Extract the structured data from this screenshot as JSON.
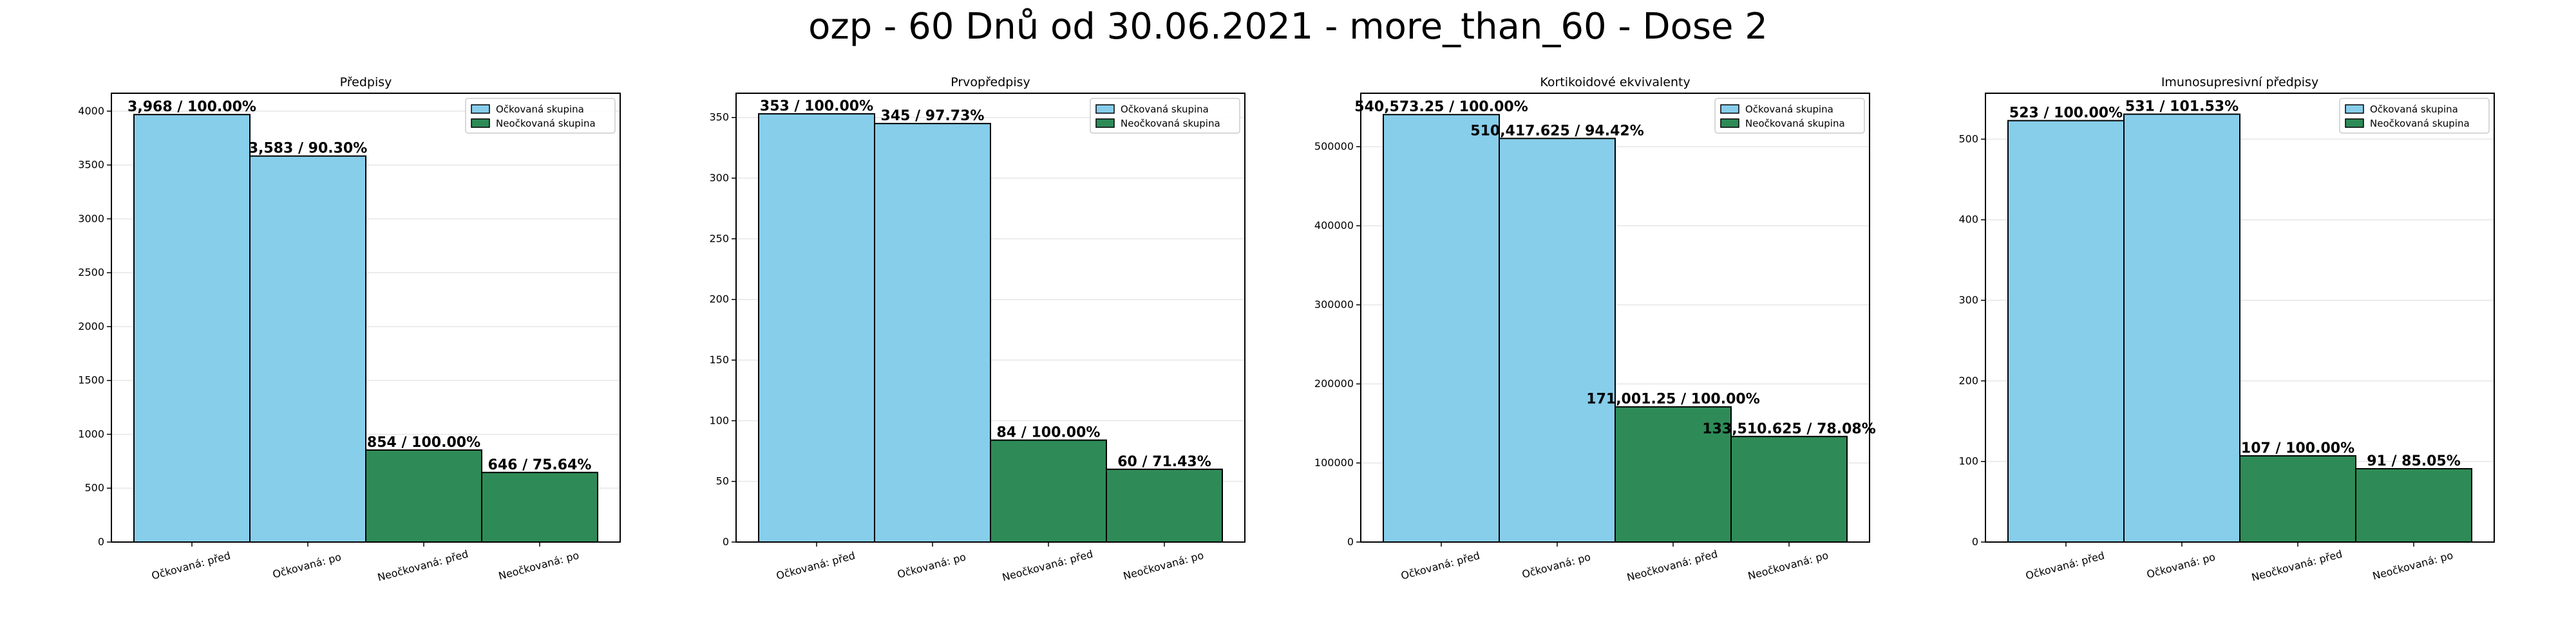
{
  "figure_title": "ozp - 60 Dnů od 30.06.2021 - more_than_60 - Dose 2",
  "colors": {
    "vaccinated": "#87CEEB",
    "unvaccinated": "#2E8B57",
    "edge": "#000000",
    "grid": "#e6e6e6"
  },
  "chart_data": [
    {
      "type": "bar",
      "title": "Předpisy",
      "categories": [
        "Očkovaná: před",
        "Očkovaná: po",
        "Neočkovaná: před",
        "Neočkovaná: po"
      ],
      "values": [
        3968,
        3583,
        854,
        646
      ],
      "bar_labels": [
        "3,968 / 100.00%",
        "3,583 / 90.30%",
        "854 / 100.00%",
        "646 / 75.64%"
      ],
      "groups": [
        "vaccinated",
        "vaccinated",
        "unvaccinated",
        "unvaccinated"
      ],
      "yticks": [
        0,
        500,
        1000,
        1500,
        2000,
        2500,
        3000,
        3500,
        4000
      ],
      "ylim": [
        0,
        4166
      ],
      "legend": [
        "Očkovaná skupina",
        "Neočkovaná skupina"
      ],
      "legend_position": "top-right",
      "grid": "y"
    },
    {
      "type": "bar",
      "title": "Prvopředpisy",
      "categories": [
        "Očkovaná: před",
        "Očkovaná: po",
        "Neočkovaná: před",
        "Neočkovaná: po"
      ],
      "values": [
        353,
        345,
        84,
        60
      ],
      "bar_labels": [
        "353 / 100.00%",
        "345 / 97.73%",
        "84 / 100.00%",
        "60 / 71.43%"
      ],
      "groups": [
        "vaccinated",
        "vaccinated",
        "unvaccinated",
        "unvaccinated"
      ],
      "yticks": [
        0,
        50,
        100,
        150,
        200,
        250,
        300,
        350
      ],
      "ylim": [
        0,
        370
      ],
      "legend": [
        "Očkovaná skupina",
        "Neočkovaná skupina"
      ],
      "legend_position": "top-right",
      "grid": "y"
    },
    {
      "type": "bar",
      "title": "Kortikoidové ekvivalenty",
      "categories": [
        "Očkovaná: před",
        "Očkovaná: po",
        "Neočkovaná: před",
        "Neočkovaná: po"
      ],
      "values": [
        540573.25,
        510417.625,
        171001.25,
        133510.625
      ],
      "bar_labels": [
        "540,573.25 / 100.00%",
        "510,417.625 / 94.42%",
        "171,001.25 / 100.00%",
        "133,510.625 / 78.08%"
      ],
      "groups": [
        "vaccinated",
        "vaccinated",
        "unvaccinated",
        "unvaccinated"
      ],
      "yticks": [
        0,
        100000,
        200000,
        300000,
        400000,
        500000
      ],
      "ylim": [
        0,
        567600
      ],
      "legend": [
        "Očkovaná skupina",
        "Neočkovaná skupina"
      ],
      "legend_position": "top-right",
      "grid": "y"
    },
    {
      "type": "bar",
      "title": "Imunosupresivní předpisy",
      "categories": [
        "Očkovaná: před",
        "Očkovaná: po",
        "Neočkovaná: před",
        "Neočkovaná: po"
      ],
      "values": [
        523,
        531,
        107,
        91
      ],
      "bar_labels": [
        "523 / 100.00%",
        "531 / 101.53%",
        "107 / 100.00%",
        "91 / 85.05%"
      ],
      "groups": [
        "vaccinated",
        "vaccinated",
        "unvaccinated",
        "unvaccinated"
      ],
      "yticks": [
        0,
        100,
        200,
        300,
        400,
        500
      ],
      "ylim": [
        0,
        557
      ],
      "legend": [
        "Očkovaná skupina",
        "Neočkovaná skupina"
      ],
      "legend_position": "top-right",
      "grid": "y"
    }
  ]
}
